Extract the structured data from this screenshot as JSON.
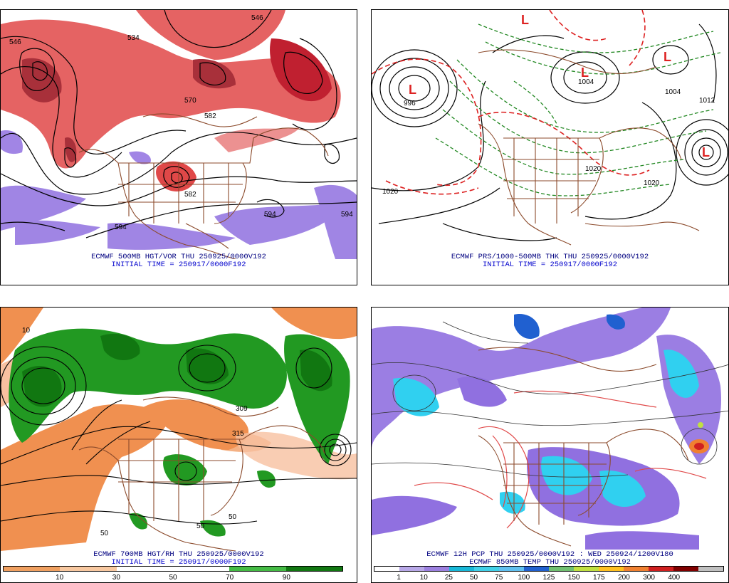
{
  "panels": {
    "tl": {
      "caption_line1": "ECMWF 500MB HGT/VOR THU 250925/0000V192",
      "caption_line2": "INITIAL TIME = 250917/0000F192",
      "contour_labels": [
        "546",
        "534",
        "546",
        "570",
        "582",
        "582",
        "594",
        "594",
        "594"
      ]
    },
    "tr": {
      "caption_line1": "ECMWF PRS/1000-500MB THK THU 250925/0000V192",
      "caption_line2": "INITIAL TIME = 250917/0000F192",
      "contour_labels": [
        "1020",
        "1020",
        "996",
        "1004",
        "1004",
        "1012",
        "1020"
      ],
      "low_symbols": [
        "L",
        "L",
        "L",
        "L",
        "L"
      ]
    },
    "bl": {
      "caption_line1": "ECMWF 700MB HGT/RH THU 250925/0000V192",
      "caption_line2": "INITIAL TIME = 250917/0000F192",
      "contour_labels": [
        "309",
        "315",
        "50",
        "50",
        "50",
        "10"
      ],
      "colorbar": {
        "colors": [
          "#f0a060",
          "#f8c8a0",
          "#ffffff",
          "#ffffff",
          "#44bb44",
          "#117711"
        ],
        "ticks": [
          "10",
          "30",
          "50",
          "70",
          "90"
        ]
      }
    },
    "br": {
      "caption_line1": "ECMWF 12H PCP THU 250925/0000V192 : WED 250924/1200V180",
      "caption_line2": "ECMWF 850MB TEMP THU 250925/0000V192",
      "colorbar": {
        "colors": [
          "#ffffff",
          "#b8a8e8",
          "#9c80e0",
          "#18b8d8",
          "#40d0e8",
          "#60c0f0",
          "#2060d0",
          "#70c070",
          "#c0e040",
          "#ffc020",
          "#f08030",
          "#d02020",
          "#800000",
          "#c0c0c0"
        ],
        "ticks": [
          "1",
          "10",
          "25",
          "50",
          "75",
          "100",
          "125",
          "150",
          "175",
          "200",
          "300",
          "400"
        ]
      }
    }
  },
  "colors": {
    "coast": "#8b4a2b",
    "contour": "#000000",
    "vorticity": "#d8303a",
    "thickness_warm": "#dd2222",
    "thickness_cold": "#228822",
    "rh_moist": "#229922",
    "rh_dry": "#f09050",
    "pcp_purple": "#9070e0",
    "pcp_cyan": "#30d0f0"
  }
}
